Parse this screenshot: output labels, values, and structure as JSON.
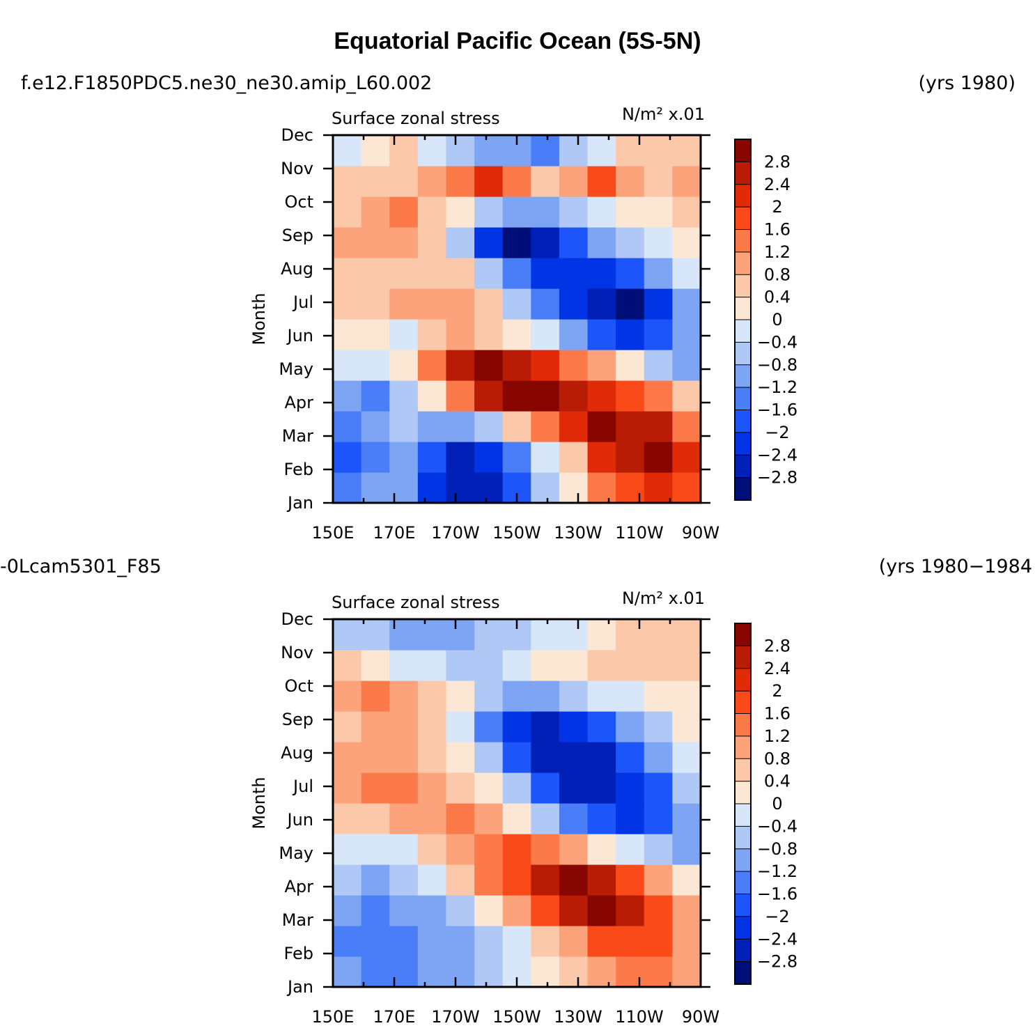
{
  "figure_title": "Equatorial Pacific Ocean (5S-5N)",
  "chart_data": [
    {
      "type": "heatmap",
      "run_label": "f.e12.F1850PDC5.ne30_ne30.amip_L60.002",
      "years_label": "(yrs 1980)",
      "title": "Surface zonal stress",
      "units": "N/m² x.01",
      "xlabel": "",
      "ylabel": "Month",
      "x_ticks": [
        "150E",
        "170E",
        "170W",
        "150W",
        "130W",
        "110W",
        "90W"
      ],
      "y_ticks": [
        "Jan",
        "Feb",
        "Mar",
        "Apr",
        "May",
        "Jun",
        "Jul",
        "Aug",
        "Sep",
        "Oct",
        "Nov",
        "Dec"
      ],
      "x_range_deg_east": [
        150,
        270
      ],
      "colorbar_levels": [
        -2.8,
        -2.4,
        -2,
        -1.6,
        -1.2,
        -0.8,
        -0.4,
        0,
        0.4,
        0.8,
        1.2,
        1.6,
        2,
        2.4,
        2.8
      ],
      "colorbar_labels": [
        "2.8",
        "2.4",
        "2",
        "1.6",
        "1.2",
        "0.8",
        "0.4",
        "0",
        "−0.4",
        "−0.8",
        "−1.2",
        "−1.6",
        "−2",
        "−2.4",
        "−2.8"
      ],
      "grid_lon": [
        150,
        160,
        170,
        180,
        190,
        200,
        210,
        220,
        230,
        240,
        250,
        260,
        270
      ],
      "values": [
        [
          -1.6,
          -1.2,
          -1.0,
          -2.4,
          -2.8,
          -2.8,
          -2.0,
          -0.8,
          0.0,
          1.2,
          1.8,
          2.0,
          1.8
        ],
        [
          -1.8,
          -1.6,
          -1.0,
          -2.0,
          -2.6,
          -2.4,
          -1.6,
          -0.4,
          0.6,
          2.0,
          2.6,
          2.8,
          2.0
        ],
        [
          -1.4,
          -1.0,
          -0.6,
          -1.0,
          -1.2,
          -0.6,
          0.4,
          1.4,
          2.0,
          2.8,
          2.6,
          2.4,
          1.2
        ],
        [
          -1.2,
          -1.6,
          -0.8,
          0.2,
          1.2,
          2.4,
          3.0,
          3.0,
          2.6,
          2.0,
          1.6,
          1.2,
          0.6
        ],
        [
          -0.4,
          -0.4,
          0.2,
          1.4,
          2.4,
          2.8,
          2.6,
          2.0,
          1.4,
          0.8,
          0.0,
          -0.6,
          -1.0
        ],
        [
          0.2,
          0.0,
          -0.4,
          0.4,
          0.8,
          0.6,
          0.2,
          -0.4,
          -1.2,
          -2.0,
          -2.4,
          -2.0,
          -1.2
        ],
        [
          0.6,
          0.4,
          0.8,
          0.8,
          1.0,
          0.4,
          -0.6,
          -1.6,
          -2.4,
          -2.8,
          -3.0,
          -2.4,
          -1.2
        ],
        [
          0.4,
          0.6,
          0.6,
          0.4,
          0.4,
          -0.6,
          -1.6,
          -2.4,
          -2.4,
          -2.4,
          -2.0,
          -1.2,
          -0.4
        ],
        [
          0.8,
          0.8,
          1.0,
          0.4,
          -0.8,
          -2.2,
          -3.0,
          -2.8,
          -2.0,
          -1.2,
          -0.6,
          -0.2,
          0.2
        ],
        [
          0.6,
          0.8,
          1.2,
          0.6,
          0.0,
          -0.8,
          -1.2,
          -1.2,
          -0.8,
          -0.4,
          0.0,
          0.2,
          0.4
        ],
        [
          0.4,
          0.4,
          0.6,
          0.8,
          1.4,
          2.0,
          1.4,
          0.6,
          0.8,
          1.6,
          0.8,
          0.4,
          0.8
        ],
        [
          -0.4,
          0.0,
          0.4,
          -0.4,
          -0.8,
          -1.0,
          -1.2,
          -1.6,
          -0.8,
          -0.4,
          0.4,
          0.6,
          0.6
        ]
      ]
    },
    {
      "type": "heatmap",
      "run_label": "-0Lcam5301_F85",
      "years_label": "(yrs 1980−1984",
      "title": "Surface zonal stress",
      "units": "N/m² x.01",
      "xlabel": "",
      "ylabel": "Month",
      "x_ticks": [
        "150E",
        "170E",
        "170W",
        "150W",
        "130W",
        "110W",
        "90W"
      ],
      "y_ticks": [
        "Jan",
        "Feb",
        "Mar",
        "Apr",
        "May",
        "Jun",
        "Jul",
        "Aug",
        "Sep",
        "Oct",
        "Nov",
        "Dec"
      ],
      "x_range_deg_east": [
        150,
        270
      ],
      "colorbar_levels": [
        -2.8,
        -2.4,
        -2,
        -1.6,
        -1.2,
        -0.8,
        -0.4,
        0,
        0.4,
        0.8,
        1.2,
        1.6,
        2,
        2.4,
        2.8
      ],
      "colorbar_labels": [
        "2.8",
        "2.4",
        "2",
        "1.6",
        "1.2",
        "0.8",
        "0.4",
        "0",
        "−0.4",
        "−0.8",
        "−1.2",
        "−1.6",
        "−2",
        "−2.4",
        "−2.8"
      ],
      "grid_lon": [
        150,
        160,
        170,
        180,
        190,
        200,
        210,
        220,
        230,
        240,
        250,
        260,
        270
      ],
      "values": [
        [
          -1.2,
          -1.6,
          -1.6,
          -1.2,
          -1.0,
          -0.8,
          -0.4,
          0.0,
          0.4,
          0.8,
          1.2,
          1.4,
          1.0
        ],
        [
          -1.4,
          -1.6,
          -1.6,
          -1.2,
          -1.0,
          -0.6,
          -0.2,
          0.4,
          1.0,
          1.6,
          1.8,
          1.6,
          1.0
        ],
        [
          -1.2,
          -1.4,
          -1.2,
          -1.0,
          -0.8,
          0.0,
          0.8,
          1.6,
          2.4,
          2.8,
          2.6,
          1.8,
          0.8
        ],
        [
          -0.8,
          -1.0,
          -0.8,
          -0.4,
          0.4,
          1.2,
          1.8,
          2.4,
          2.8,
          2.4,
          1.6,
          0.8,
          0.2
        ],
        [
          -0.2,
          -0.4,
          -0.2,
          0.4,
          1.0,
          1.4,
          1.6,
          1.4,
          0.8,
          0.2,
          -0.4,
          -0.8,
          -1.0
        ],
        [
          0.4,
          0.6,
          0.8,
          1.0,
          1.2,
          0.8,
          0.2,
          -0.8,
          -1.6,
          -2.0,
          -2.2,
          -2.0,
          -1.2
        ],
        [
          1.0,
          1.4,
          1.2,
          0.8,
          0.6,
          0.2,
          -0.6,
          -1.8,
          -2.6,
          -2.8,
          -2.4,
          -1.8,
          -0.8
        ],
        [
          0.8,
          0.8,
          0.8,
          0.6,
          0.2,
          -0.8,
          -2.0,
          -2.6,
          -2.8,
          -2.6,
          -2.0,
          -1.2,
          -0.4
        ],
        [
          0.6,
          0.8,
          1.0,
          0.6,
          -0.4,
          -1.6,
          -2.2,
          -2.6,
          -2.4,
          -1.8,
          -1.2,
          -0.6,
          0.0
        ],
        [
          1.0,
          1.4,
          0.8,
          0.4,
          0.0,
          -0.8,
          -1.2,
          -1.0,
          -0.6,
          -0.4,
          -0.2,
          0.0,
          0.2
        ],
        [
          0.4,
          0.2,
          -0.2,
          -0.4,
          -0.6,
          -0.6,
          -0.2,
          0.0,
          0.2,
          0.4,
          0.6,
          0.4,
          0.6
        ],
        [
          -0.6,
          -0.8,
          -1.0,
          -1.2,
          -1.0,
          -0.8,
          -0.6,
          -0.4,
          -0.2,
          0.0,
          0.4,
          0.6,
          0.6
        ]
      ]
    }
  ],
  "colors": {
    "bins": [
      "#000f78",
      "#0020b8",
      "#0034e4",
      "#1c55fa",
      "#4a7ef8",
      "#7ea4f4",
      "#b0c8f6",
      "#d8e6fa",
      "#fce6d4",
      "#fcc8aa",
      "#fca37c",
      "#fc7a4a",
      "#fa4a1a",
      "#e02a08",
      "#b81c04",
      "#880600"
    ]
  }
}
